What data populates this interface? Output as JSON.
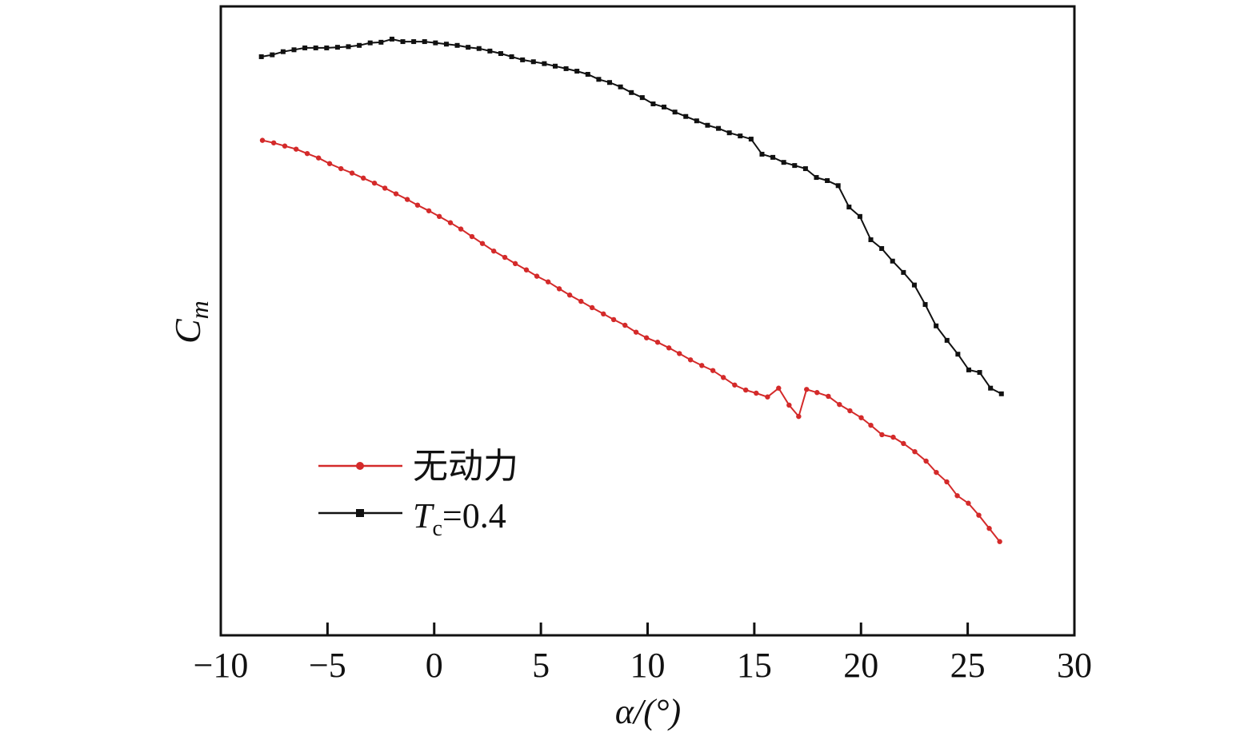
{
  "chart_data": {
    "type": "line",
    "title": "",
    "xlabel": "α/(°)",
    "ylabel_main": "C",
    "ylabel_sub": "m",
    "xlim": [
      -10,
      30
    ],
    "ylim": [
      0,
      100
    ],
    "y_units": "arbitrary (no y tick labels shown)",
    "xticks": [
      -10,
      -5,
      0,
      5,
      10,
      15,
      20,
      25,
      30
    ],
    "xtick_labels": [
      "−10",
      "−5",
      "0",
      "5",
      "10",
      "15",
      "20",
      "25",
      "30"
    ],
    "grid": false,
    "legend_position": "lower-left",
    "series": [
      {
        "name": "无动力",
        "color": "#d42a2a",
        "marker": "circle",
        "x": [
          -8.05,
          -7.52,
          -7.0,
          -6.47,
          -5.95,
          -5.42,
          -4.9,
          -4.37,
          -3.85,
          -3.32,
          -2.8,
          -2.31,
          -1.79,
          -1.26,
          -0.78,
          -0.25,
          0.24,
          0.76,
          1.25,
          1.77,
          2.26,
          2.79,
          3.31,
          3.8,
          4.32,
          4.81,
          5.34,
          5.86,
          6.35,
          6.88,
          7.4,
          7.93,
          8.41,
          8.94,
          9.46,
          9.95,
          10.47,
          11.0,
          11.49,
          12.01,
          12.54,
          13.06,
          13.55,
          14.08,
          14.6,
          15.09,
          15.62,
          16.14,
          16.63,
          17.08,
          17.45,
          17.94,
          18.47,
          18.99,
          19.48,
          20.01,
          20.46,
          20.98,
          21.51,
          21.99,
          22.52,
          23.05,
          23.53,
          24.02,
          24.51,
          25.03,
          25.52,
          26.01,
          26.5
        ],
        "y": [
          78.7,
          78.3,
          77.8,
          77.3,
          76.6,
          75.9,
          75.0,
          74.2,
          73.5,
          72.7,
          71.9,
          71.1,
          70.2,
          69.3,
          68.4,
          67.5,
          66.6,
          65.6,
          64.6,
          63.4,
          62.3,
          61.1,
          60.1,
          59.1,
          58.1,
          57.1,
          56.2,
          55.1,
          54.1,
          53.1,
          52.1,
          51.1,
          50.2,
          49.3,
          48.2,
          47.3,
          46.6,
          45.7,
          44.8,
          43.8,
          42.9,
          42.1,
          41.0,
          39.8,
          39.0,
          38.5,
          37.9,
          39.3,
          36.6,
          34.8,
          39.1,
          38.6,
          38.0,
          36.7,
          35.7,
          34.6,
          33.4,
          31.9,
          31.5,
          30.5,
          29.2,
          27.7,
          25.9,
          24.4,
          22.2,
          21.0,
          19.1,
          17.0,
          14.9
        ]
      },
      {
        "name_main": "T",
        "name_sub": "c",
        "name_value": "=0.4",
        "color": "#111111",
        "marker": "square",
        "x": [
          -8.1,
          -7.59,
          -7.08,
          -6.57,
          -6.06,
          -5.55,
          -5.04,
          -4.53,
          -4.02,
          -3.51,
          -3.0,
          -2.49,
          -1.98,
          -1.47,
          -0.96,
          -0.45,
          0.06,
          0.57,
          1.08,
          1.59,
          2.1,
          2.61,
          3.12,
          3.63,
          4.14,
          4.65,
          5.16,
          5.67,
          6.18,
          6.69,
          7.2,
          7.71,
          8.22,
          8.73,
          9.24,
          9.75,
          10.26,
          10.77,
          11.28,
          11.79,
          12.3,
          12.81,
          13.32,
          13.83,
          14.34,
          14.85,
          15.36,
          15.87,
          16.38,
          16.89,
          17.4,
          17.91,
          18.42,
          18.93,
          19.44,
          19.95,
          20.46,
          20.97,
          21.48,
          21.99,
          22.5,
          23.01,
          23.52,
          24.03,
          24.54,
          25.05,
          25.56,
          26.07,
          26.58
        ],
        "y": [
          92.0,
          92.3,
          92.8,
          93.1,
          93.4,
          93.4,
          93.4,
          93.5,
          93.6,
          93.8,
          94.2,
          94.3,
          94.8,
          94.4,
          94.4,
          94.4,
          94.2,
          94.0,
          93.8,
          93.5,
          93.3,
          92.9,
          92.5,
          92.0,
          91.5,
          91.2,
          90.9,
          90.5,
          90.1,
          89.7,
          89.2,
          88.4,
          87.9,
          87.2,
          86.3,
          85.5,
          84.5,
          84.0,
          83.2,
          82.5,
          81.8,
          81.1,
          80.6,
          79.9,
          79.4,
          78.9,
          76.5,
          76.0,
          75.2,
          74.7,
          74.2,
          72.8,
          72.3,
          71.5,
          68.1,
          66.6,
          62.9,
          61.5,
          59.5,
          57.7,
          55.7,
          52.6,
          49.2,
          46.9,
          44.7,
          42.2,
          41.8,
          39.3,
          38.4
        ]
      }
    ]
  }
}
